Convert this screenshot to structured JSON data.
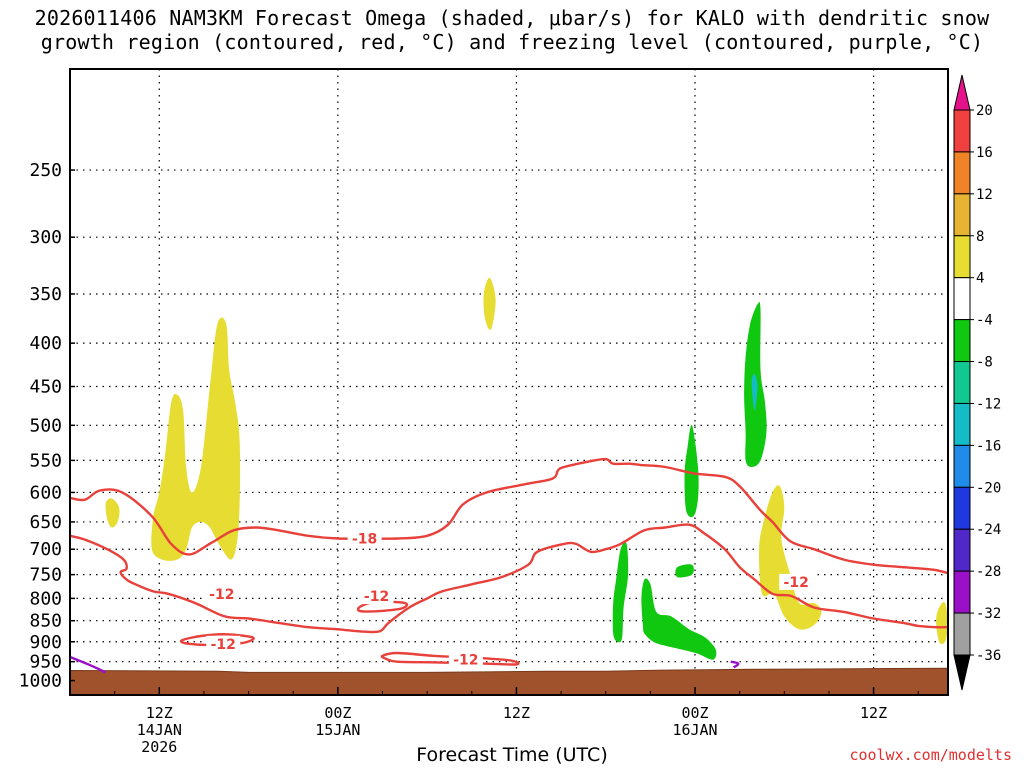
{
  "title_lines": [
    "2026011406 NAM3KM Forecast Omega (shaded, μbar/s) for KALO with dendritic snow",
    "growth region (contoured, red, °C) and freezing level (contoured, purple, °C)"
  ],
  "credit": "coolwx.com/modelts",
  "chart_data": {
    "type": "time-height cross section",
    "xlabel": "Forecast Time (UTC)",
    "x_ticks": [
      {
        "hour": 6,
        "lines": [
          "12Z",
          "14JAN",
          "2026"
        ]
      },
      {
        "hour": 18,
        "lines": [
          "00Z",
          "15JAN"
        ]
      },
      {
        "hour": 30,
        "lines": [
          "12Z"
        ]
      },
      {
        "hour": 42,
        "lines": [
          "00Z",
          "16JAN"
        ]
      },
      {
        "hour": 54,
        "lines": [
          "12Z"
        ]
      }
    ],
    "x_range_hours": [
      0,
      59
    ],
    "y_scale": "log",
    "y_range_mb": [
      1040,
      190
    ],
    "y_ticks": [
      250,
      300,
      350,
      400,
      450,
      500,
      550,
      600,
      650,
      700,
      750,
      800,
      850,
      900,
      950,
      1000
    ],
    "grid": true,
    "colorbar": {
      "levels": [
        "-36",
        "-32",
        "-28",
        "-24",
        "-20",
        "-16",
        "-12",
        "-8",
        "-4",
        "4",
        "8",
        "12",
        "16",
        "20"
      ],
      "colors": [
        "#000000",
        "#a0a0a0",
        "#9a10c8",
        "#5028c8",
        "#2038e0",
        "#1e8ce8",
        "#14bcc8",
        "#10c890",
        "#10c810",
        "#ffffff",
        "#e6dc32",
        "#e6b432",
        "#f08228",
        "#f04040",
        "#e6128c"
      ]
    },
    "omega_regions": [
      {
        "color": "#e6dc32",
        "points": [
          [
            2.4,
            618
          ],
          [
            2.8,
            610
          ],
          [
            3.3,
            625
          ],
          [
            3.2,
            650
          ],
          [
            2.8,
            660
          ],
          [
            2.5,
            645
          ]
        ]
      },
      {
        "color": "#e6dc32",
        "points": [
          [
            5.5,
            700
          ],
          [
            5.6,
            640
          ],
          [
            6.0,
            600
          ],
          [
            6.4,
            540
          ],
          [
            6.8,
            470
          ],
          [
            7.2,
            460
          ],
          [
            7.6,
            480
          ],
          [
            7.8,
            560
          ],
          [
            8.2,
            600
          ],
          [
            8.8,
            560
          ],
          [
            9.4,
            450
          ],
          [
            9.9,
            380
          ],
          [
            10.5,
            380
          ],
          [
            10.7,
            430
          ],
          [
            11.1,
            470
          ],
          [
            11.4,
            520
          ],
          [
            11.4,
            620
          ],
          [
            11.2,
            690
          ],
          [
            10.8,
            720
          ],
          [
            10.0,
            690
          ],
          [
            9.4,
            660
          ],
          [
            8.8,
            650
          ],
          [
            8.2,
            660
          ],
          [
            7.8,
            700
          ],
          [
            7.2,
            720
          ],
          [
            6.2,
            720
          ]
        ]
      },
      {
        "color": "#e6dc32",
        "points": [
          [
            27.8,
            350
          ],
          [
            28.2,
            335
          ],
          [
            28.6,
            355
          ],
          [
            28.3,
            385
          ],
          [
            27.9,
            375
          ]
        ]
      },
      {
        "color": "#e6dc32",
        "points": [
          [
            46.3,
            700
          ],
          [
            46.6,
            650
          ],
          [
            47.2,
            600
          ],
          [
            47.7,
            590
          ],
          [
            48.0,
            625
          ],
          [
            47.8,
            680
          ],
          [
            48.4,
            750
          ],
          [
            49.0,
            810
          ],
          [
            50.0,
            810
          ],
          [
            50.5,
            830
          ],
          [
            50.0,
            860
          ],
          [
            49.0,
            870
          ],
          [
            48.0,
            840
          ],
          [
            47.3,
            790
          ],
          [
            46.5,
            790
          ]
        ]
      },
      {
        "color": "#e6dc32",
        "points": [
          [
            58.2,
            850
          ],
          [
            58.4,
            820
          ],
          [
            58.8,
            810
          ],
          [
            59.0,
            860
          ],
          [
            58.8,
            900
          ],
          [
            58.4,
            900
          ]
        ]
      },
      {
        "color": "#10c810",
        "points": [
          [
            41.4,
            630
          ],
          [
            41.3,
            570
          ],
          [
            41.5,
            530
          ],
          [
            41.8,
            500
          ],
          [
            42.2,
            560
          ],
          [
            42.2,
            610
          ],
          [
            41.9,
            640
          ]
        ]
      },
      {
        "color": "#10c810",
        "points": [
          [
            45.4,
            510
          ],
          [
            45.3,
            460
          ],
          [
            45.4,
            415
          ],
          [
            45.7,
            380
          ],
          [
            46.2,
            360
          ],
          [
            46.4,
            365
          ],
          [
            46.4,
            430
          ],
          [
            46.7,
            470
          ],
          [
            46.8,
            510
          ],
          [
            46.4,
            550
          ],
          [
            45.8,
            560
          ],
          [
            45.4,
            550
          ]
        ]
      },
      {
        "color": "#14bcc8",
        "points": [
          [
            45.8,
            445
          ],
          [
            46.0,
            435
          ],
          [
            46.2,
            450
          ],
          [
            46.0,
            480
          ]
        ]
      },
      {
        "color": "#10c810",
        "points": [
          [
            40.8,
            735
          ],
          [
            41.8,
            730
          ],
          [
            41.8,
            750
          ],
          [
            40.8,
            755
          ]
        ]
      },
      {
        "color": "#10c810",
        "points": [
          [
            36.5,
            880
          ],
          [
            36.5,
            810
          ],
          [
            36.7,
            760
          ],
          [
            37.0,
            700
          ],
          [
            37.4,
            690
          ],
          [
            37.5,
            750
          ],
          [
            37.2,
            820
          ],
          [
            37.1,
            890
          ],
          [
            36.8,
            900
          ]
        ]
      },
      {
        "color": "#10c810",
        "points": [
          [
            38.5,
            860
          ],
          [
            38.4,
            800
          ],
          [
            38.6,
            760
          ],
          [
            39.0,
            770
          ],
          [
            39.4,
            830
          ],
          [
            40.4,
            840
          ],
          [
            41.6,
            870
          ],
          [
            42.7,
            890
          ],
          [
            43.4,
            920
          ],
          [
            43.2,
            945
          ],
          [
            42.2,
            930
          ],
          [
            41.2,
            920
          ],
          [
            40.0,
            910
          ],
          [
            39.2,
            900
          ],
          [
            38.6,
            880
          ]
        ]
      }
    ],
    "dgz_contours": [
      {
        "points": [
          [
            0,
            609
          ],
          [
            1.0,
            612
          ],
          [
            2.0,
            597
          ],
          [
            3.5,
            600
          ],
          [
            5.5,
            640
          ],
          [
            6.8,
            690
          ],
          [
            8.0,
            710
          ],
          [
            9.5,
            688
          ],
          [
            11.0,
            665
          ],
          [
            12.5,
            660
          ],
          [
            14.0,
            665
          ],
          [
            16.0,
            675
          ],
          [
            18.0,
            680
          ],
          [
            19.8,
            680
          ],
          [
            22.0,
            680
          ],
          [
            24.0,
            675
          ],
          [
            25.4,
            655
          ],
          [
            26.4,
            620
          ],
          [
            28.0,
            600
          ],
          [
            30.5,
            587
          ],
          [
            32.4,
            578
          ],
          [
            32.8,
            565
          ],
          [
            33.2,
            560
          ],
          [
            34.8,
            552
          ],
          [
            36.0,
            548
          ],
          [
            36.5,
            555
          ],
          [
            37.6,
            555
          ],
          [
            38.4,
            557
          ],
          [
            40.0,
            560
          ],
          [
            42.0,
            570
          ],
          [
            44.0,
            575
          ],
          [
            45.0,
            590
          ],
          [
            46.4,
            630
          ],
          [
            47.2,
            650
          ],
          [
            48.4,
            685
          ],
          [
            50.0,
            700
          ],
          [
            52.0,
            720
          ],
          [
            54.0,
            730
          ],
          [
            56.0,
            735
          ],
          [
            58.0,
            740
          ],
          [
            59,
            747
          ]
        ]
      },
      {
        "points": [
          [
            0,
            675
          ],
          [
            1.0,
            682
          ],
          [
            2.5,
            700
          ],
          [
            3.6,
            720
          ],
          [
            3.8,
            738
          ],
          [
            3.4,
            745
          ],
          [
            3.8,
            760
          ],
          [
            4.4,
            770
          ],
          [
            5.6,
            785
          ],
          [
            6.6,
            790
          ],
          [
            8.4,
            810
          ],
          [
            10.4,
            840
          ],
          [
            12.0,
            845
          ],
          [
            14.0,
            855
          ],
          [
            16.0,
            865
          ],
          [
            18.0,
            870
          ],
          [
            19.5,
            875
          ],
          [
            20.8,
            875
          ],
          [
            21.4,
            855
          ],
          [
            22.8,
            820
          ],
          [
            24.0,
            800
          ],
          [
            25.0,
            785
          ],
          [
            27.0,
            770
          ],
          [
            29.0,
            755
          ],
          [
            30.8,
            730
          ],
          [
            31.4,
            705
          ],
          [
            33.2,
            690
          ],
          [
            34.0,
            690
          ],
          [
            35.0,
            705
          ],
          [
            36.0,
            700
          ],
          [
            37.0,
            690
          ],
          [
            38.6,
            665
          ],
          [
            40.0,
            660
          ],
          [
            41.6,
            655
          ],
          [
            42.6,
            670
          ],
          [
            44.0,
            700
          ],
          [
            45.0,
            735
          ],
          [
            46.0,
            760
          ],
          [
            47.2,
            790
          ],
          [
            48.5,
            795
          ],
          [
            50.0,
            820
          ],
          [
            52.0,
            830
          ],
          [
            54.0,
            845
          ],
          [
            56.0,
            855
          ],
          [
            57.0,
            862
          ],
          [
            58.2,
            865
          ],
          [
            59,
            865
          ]
        ]
      },
      {
        "points": [
          [
            19.5,
            818
          ],
          [
            20.5,
            808
          ],
          [
            22.5,
            810
          ],
          [
            22.3,
            822
          ],
          [
            20.8,
            828
          ],
          [
            19.5,
            828
          ]
        ]
      },
      {
        "points": [
          [
            7.5,
            897
          ],
          [
            8.8,
            886
          ],
          [
            10.5,
            882
          ],
          [
            12.3,
            890
          ],
          [
            11.6,
            903
          ],
          [
            9.8,
            908
          ],
          [
            8.0,
            905
          ]
        ]
      },
      {
        "points": [
          [
            21.0,
            935
          ],
          [
            22.0,
            928
          ],
          [
            24.4,
            935
          ],
          [
            27.2,
            940
          ],
          [
            29.6,
            947
          ],
          [
            30.0,
            957
          ],
          [
            27.8,
            955
          ],
          [
            24.6,
            952
          ],
          [
            22.0,
            950
          ],
          [
            21.2,
            942
          ]
        ]
      }
    ],
    "dgz_labels": [
      {
        "text": "-18",
        "hour": 19.8,
        "mb": 680
      },
      {
        "text": "-12",
        "hour": 10.2,
        "mb": 790
      },
      {
        "text": "-12",
        "hour": 20.6,
        "mb": 795
      },
      {
        "text": "-12",
        "hour": 10.3,
        "mb": 905
      },
      {
        "text": "-12",
        "hour": 26.6,
        "mb": 945
      },
      {
        "text": "-12",
        "hour": 48.8,
        "mb": 765
      }
    ],
    "freezing_level": [
      {
        "points": [
          [
            0,
            938
          ],
          [
            1.3,
            958
          ],
          [
            2.4,
            978
          ]
        ]
      },
      {
        "points": [
          [
            44.4,
            950
          ],
          [
            44.9,
            955
          ],
          [
            44.6,
            965
          ]
        ]
      }
    ],
    "terrain": {
      "color": "#a0522d",
      "points": [
        [
          0,
          973
        ],
        [
          10,
          975
        ],
        [
          12,
          978
        ],
        [
          16,
          978
        ],
        [
          24,
          978
        ],
        [
          32,
          975
        ],
        [
          36,
          975
        ],
        [
          40,
          972
        ],
        [
          46,
          970
        ],
        [
          50,
          969
        ],
        [
          59,
          967
        ]
      ]
    }
  }
}
